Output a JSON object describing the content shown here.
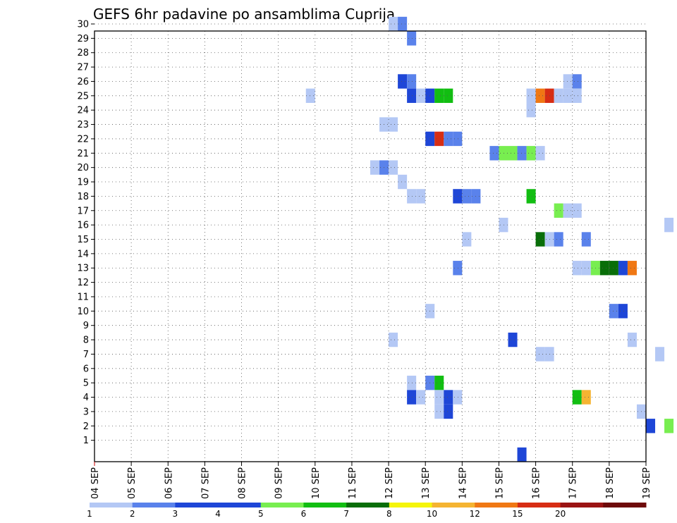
{
  "chart_data": {
    "type": "heatmap",
    "title": "GEFS 6hr padavine po ansamblima Cuprija",
    "x_ticks": [
      "04 SEP",
      "05 SEP",
      "06 SEP",
      "07 SEP",
      "08 SEP",
      "09 SEP",
      "10 SEP",
      "11 SEP",
      "12 SEP",
      "13 SEP",
      "14 SEP",
      "15 SEP",
      "16 SEP",
      "17 SEP",
      "18 SEP",
      "19 SEP"
    ],
    "y_ticks": [
      "1",
      "2",
      "3",
      "4",
      "5",
      "6",
      "7",
      "8",
      "9",
      "10",
      "11",
      "12",
      "13",
      "14",
      "15",
      "16",
      "17",
      "18",
      "19",
      "20",
      "21",
      "22",
      "23",
      "24",
      "25",
      "26",
      "27",
      "28",
      "29",
      "30"
    ],
    "grid": true,
    "colorbar": {
      "labels": [
        "1",
        "2",
        "3",
        "4",
        "5",
        "6",
        "7",
        "8",
        "10",
        "12",
        "15",
        "20"
      ],
      "colors": [
        "#b4c8f5",
        "#5a82eb",
        "#1e46d7",
        "#1e46d7",
        "#78ee50",
        "#12be12",
        "#096e09",
        "#f5f50a",
        "#f5b432",
        "#f07814",
        "#d72d14",
        "#9b1414",
        "#6e0a0a"
      ]
    },
    "cells": [
      {
        "day": "12 SEP",
        "hour": 0,
        "member": 30,
        "level": 1
      },
      {
        "day": "12 SEP",
        "hour": 6,
        "member": 30,
        "level": 2
      },
      {
        "day": "12 SEP",
        "hour": 12,
        "member": 29,
        "level": 2
      },
      {
        "day": "12 SEP",
        "hour": 6,
        "member": 26,
        "level": 3
      },
      {
        "day": "12 SEP",
        "hour": 12,
        "member": 26,
        "level": 2
      },
      {
        "day": "16 SEP",
        "hour": 18,
        "member": 26,
        "level": 1
      },
      {
        "day": "17 SEP",
        "hour": 0,
        "member": 26,
        "level": 2
      },
      {
        "day": "09 SEP",
        "hour": 18,
        "member": 25,
        "level": 1
      },
      {
        "day": "12 SEP",
        "hour": 12,
        "member": 25,
        "level": 3
      },
      {
        "day": "12 SEP",
        "hour": 18,
        "member": 25,
        "level": 1
      },
      {
        "day": "13 SEP",
        "hour": 0,
        "member": 25,
        "level": 3
      },
      {
        "day": "13 SEP",
        "hour": 6,
        "member": 25,
        "level": 6
      },
      {
        "day": "13 SEP",
        "hour": 12,
        "member": 25,
        "level": 6
      },
      {
        "day": "15 SEP",
        "hour": 18,
        "member": 25,
        "level": 1
      },
      {
        "day": "16 SEP",
        "hour": 0,
        "member": 25,
        "level": 10
      },
      {
        "day": "16 SEP",
        "hour": 6,
        "member": 25,
        "level": 15
      },
      {
        "day": "16 SEP",
        "hour": 12,
        "member": 25,
        "level": 1
      },
      {
        "day": "16 SEP",
        "hour": 18,
        "member": 25,
        "level": 1
      },
      {
        "day": "17 SEP",
        "hour": 0,
        "member": 25,
        "level": 1
      },
      {
        "day": "15 SEP",
        "hour": 18,
        "member": 24,
        "level": 1
      },
      {
        "day": "11 SEP",
        "hour": 18,
        "member": 23,
        "level": 1
      },
      {
        "day": "12 SEP",
        "hour": 0,
        "member": 23,
        "level": 1
      },
      {
        "day": "13 SEP",
        "hour": 0,
        "member": 22,
        "level": 3
      },
      {
        "day": "13 SEP",
        "hour": 6,
        "member": 22,
        "level": 15
      },
      {
        "day": "13 SEP",
        "hour": 12,
        "member": 22,
        "level": 2
      },
      {
        "day": "13 SEP",
        "hour": 18,
        "member": 22,
        "level": 2
      },
      {
        "day": "14 SEP",
        "hour": 18,
        "member": 21,
        "level": 2
      },
      {
        "day": "15 SEP",
        "hour": 0,
        "member": 21,
        "level": 5
      },
      {
        "day": "15 SEP",
        "hour": 6,
        "member": 21,
        "level": 5
      },
      {
        "day": "15 SEP",
        "hour": 12,
        "member": 21,
        "level": 2
      },
      {
        "day": "15 SEP",
        "hour": 18,
        "member": 21,
        "level": 5
      },
      {
        "day": "16 SEP",
        "hour": 0,
        "member": 21,
        "level": 1
      },
      {
        "day": "11 SEP",
        "hour": 12,
        "member": 20,
        "level": 1
      },
      {
        "day": "11 SEP",
        "hour": 18,
        "member": 20,
        "level": 2
      },
      {
        "day": "12 SEP",
        "hour": 0,
        "member": 20,
        "level": 1
      },
      {
        "day": "12 SEP",
        "hour": 6,
        "member": 19,
        "level": 1
      },
      {
        "day": "12 SEP",
        "hour": 12,
        "member": 18,
        "level": 1
      },
      {
        "day": "12 SEP",
        "hour": 18,
        "member": 18,
        "level": 1
      },
      {
        "day": "13 SEP",
        "hour": 18,
        "member": 18,
        "level": 3
      },
      {
        "day": "14 SEP",
        "hour": 0,
        "member": 18,
        "level": 2
      },
      {
        "day": "14 SEP",
        "hour": 6,
        "member": 18,
        "level": 2
      },
      {
        "day": "15 SEP",
        "hour": 18,
        "member": 18,
        "level": 6
      },
      {
        "day": "16 SEP",
        "hour": 12,
        "member": 17,
        "level": 5
      },
      {
        "day": "16 SEP",
        "hour": 18,
        "member": 17,
        "level": 1
      },
      {
        "day": "17 SEP",
        "hour": 0,
        "member": 17,
        "level": 1
      },
      {
        "day": "15 SEP",
        "hour": 0,
        "member": 16,
        "level": 1
      },
      {
        "day": "19 SEP",
        "hour": 12,
        "member": 16,
        "level": 1
      },
      {
        "day": "14 SEP",
        "hour": 0,
        "member": 15,
        "level": 1
      },
      {
        "day": "16 SEP",
        "hour": 0,
        "member": 15,
        "level": 7
      },
      {
        "day": "16 SEP",
        "hour": 6,
        "member": 15,
        "level": 1
      },
      {
        "day": "16 SEP",
        "hour": 12,
        "member": 15,
        "level": 2
      },
      {
        "day": "17 SEP",
        "hour": 6,
        "member": 15,
        "level": 2
      },
      {
        "day": "13 SEP",
        "hour": 18,
        "member": 13,
        "level": 2
      },
      {
        "day": "17 SEP",
        "hour": 0,
        "member": 13,
        "level": 1
      },
      {
        "day": "17 SEP",
        "hour": 6,
        "member": 13,
        "level": 1
      },
      {
        "day": "17 SEP",
        "hour": 12,
        "member": 13,
        "level": 5
      },
      {
        "day": "17 SEP",
        "hour": 18,
        "member": 13,
        "level": 7
      },
      {
        "day": "18 SEP",
        "hour": 0,
        "member": 13,
        "level": 7
      },
      {
        "day": "18 SEP",
        "hour": 6,
        "member": 13,
        "level": 3
      },
      {
        "day": "18 SEP",
        "hour": 12,
        "member": 13,
        "level": 10
      },
      {
        "day": "13 SEP",
        "hour": 0,
        "member": 10,
        "level": 1
      },
      {
        "day": "18 SEP",
        "hour": 0,
        "member": 10,
        "level": 2
      },
      {
        "day": "18 SEP",
        "hour": 6,
        "member": 10,
        "level": 3
      },
      {
        "day": "12 SEP",
        "hour": 0,
        "member": 8,
        "level": 1
      },
      {
        "day": "15 SEP",
        "hour": 6,
        "member": 8,
        "level": 3
      },
      {
        "day": "18 SEP",
        "hour": 12,
        "member": 8,
        "level": 1
      },
      {
        "day": "16 SEP",
        "hour": 0,
        "member": 7,
        "level": 1
      },
      {
        "day": "16 SEP",
        "hour": 6,
        "member": 7,
        "level": 1
      },
      {
        "day": "19 SEP",
        "hour": 6,
        "member": 7,
        "level": 1
      },
      {
        "day": "12 SEP",
        "hour": 12,
        "member": 5,
        "level": 1
      },
      {
        "day": "13 SEP",
        "hour": 0,
        "member": 5,
        "level": 2
      },
      {
        "day": "13 SEP",
        "hour": 6,
        "member": 5,
        "level": 6
      },
      {
        "day": "12 SEP",
        "hour": 12,
        "member": 4,
        "level": 3
      },
      {
        "day": "12 SEP",
        "hour": 18,
        "member": 4,
        "level": 1
      },
      {
        "day": "13 SEP",
        "hour": 6,
        "member": 4,
        "level": 1
      },
      {
        "day": "13 SEP",
        "hour": 12,
        "member": 4,
        "level": 3
      },
      {
        "day": "13 SEP",
        "hour": 18,
        "member": 4,
        "level": 1
      },
      {
        "day": "17 SEP",
        "hour": 0,
        "member": 4,
        "level": 6
      },
      {
        "day": "17 SEP",
        "hour": 6,
        "member": 4,
        "level": 8
      },
      {
        "day": "13 SEP",
        "hour": 6,
        "member": 3,
        "level": 1
      },
      {
        "day": "13 SEP",
        "hour": 12,
        "member": 3,
        "level": 3
      },
      {
        "day": "18 SEP",
        "hour": 18,
        "member": 3,
        "level": 1
      },
      {
        "day": "19 SEP",
        "hour": 0,
        "member": 2,
        "level": 3
      },
      {
        "day": "19 SEP",
        "hour": 12,
        "member": 2,
        "level": 5
      },
      {
        "day": "15 SEP",
        "hour": 12,
        "member": 0,
        "level": 3
      }
    ],
    "level_colors": {
      "1": "#b4c8f5",
      "2": "#5a82eb",
      "3": "#1e46d7",
      "5": "#78ee50",
      "6": "#12be12",
      "7": "#096e09",
      "8": "#f5b432",
      "10": "#f07814",
      "15": "#d72d14",
      "20": "#9b1414"
    }
  }
}
